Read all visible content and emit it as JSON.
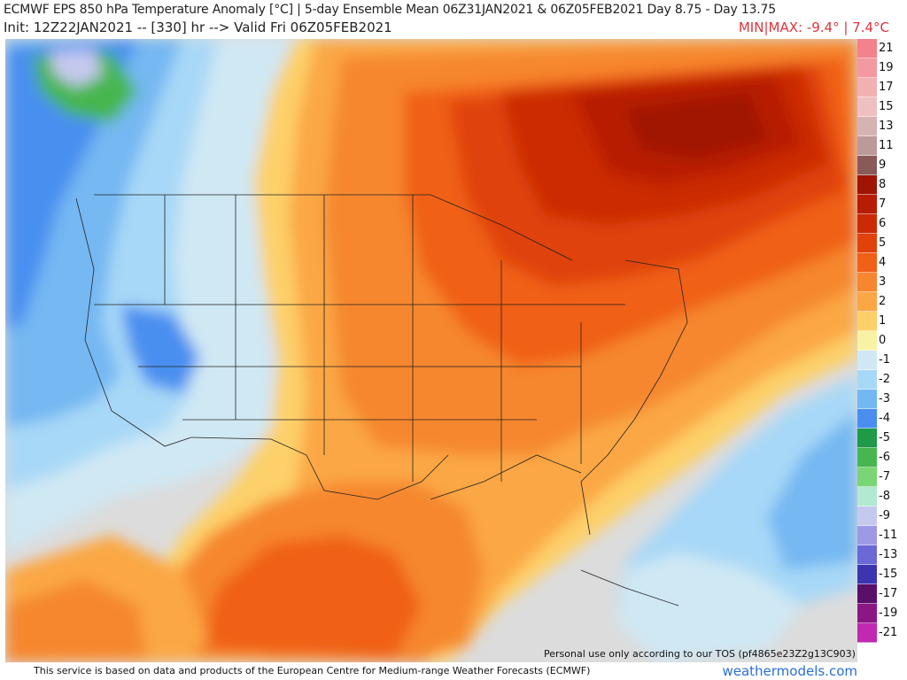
{
  "header": {
    "title_line1": "ECMWF EPS 850 hPa Temperature Anomaly [°C] | 5-day Ensemble Mean 06Z31JAN2021 & 06Z05FEB2021   Day 8.75 - Day 13.75",
    "title_line2": "Init: 12Z22JAN2021 -- [330] hr --> Valid Fri 06Z05FEB2021",
    "minmax": "MIN|MAX: -9.4° | 7.4°C"
  },
  "colorbar": {
    "labels": [
      "21",
      "19",
      "17",
      "15",
      "13",
      "11",
      "9",
      "8",
      "7",
      "6",
      "5",
      "4",
      "3",
      "2",
      "1",
      "0",
      "-1",
      "-2",
      "-3",
      "-4",
      "-5",
      "-6",
      "-7",
      "-8",
      "-9",
      "-11",
      "-13",
      "-15",
      "-17",
      "-19",
      "-21"
    ],
    "colors": [
      "#f2828c",
      "#f29aa0",
      "#f2b0b2",
      "#eec0c0",
      "#d7b2b2",
      "#bd9a9a",
      "#8a5a58",
      "#a01404",
      "#b71c05",
      "#cc2a06",
      "#e0420a",
      "#f06016",
      "#f6872e",
      "#fba745",
      "#fdd069",
      "#f8f3a4",
      "#cfe8f4",
      "#a8d8f7",
      "#74b8f2",
      "#4a8ff0",
      "#1f9a46",
      "#47b64f",
      "#7ad574",
      "#b2ead1",
      "#c6c9ef",
      "#9e99e6",
      "#6a69d6",
      "#3d35b0",
      "#5a0f6a",
      "#8c1784",
      "#c129b2",
      "#ec52e2"
    ]
  },
  "map": {
    "disclaimer": "Personal use only according to our TOS (pf4865e23Z2g13C903)"
  },
  "footer": {
    "text": "This service is based on data and products of the European Centre for Medium-range Weather Forecasts (ECMWF)",
    "site": "weathermodels.com"
  }
}
